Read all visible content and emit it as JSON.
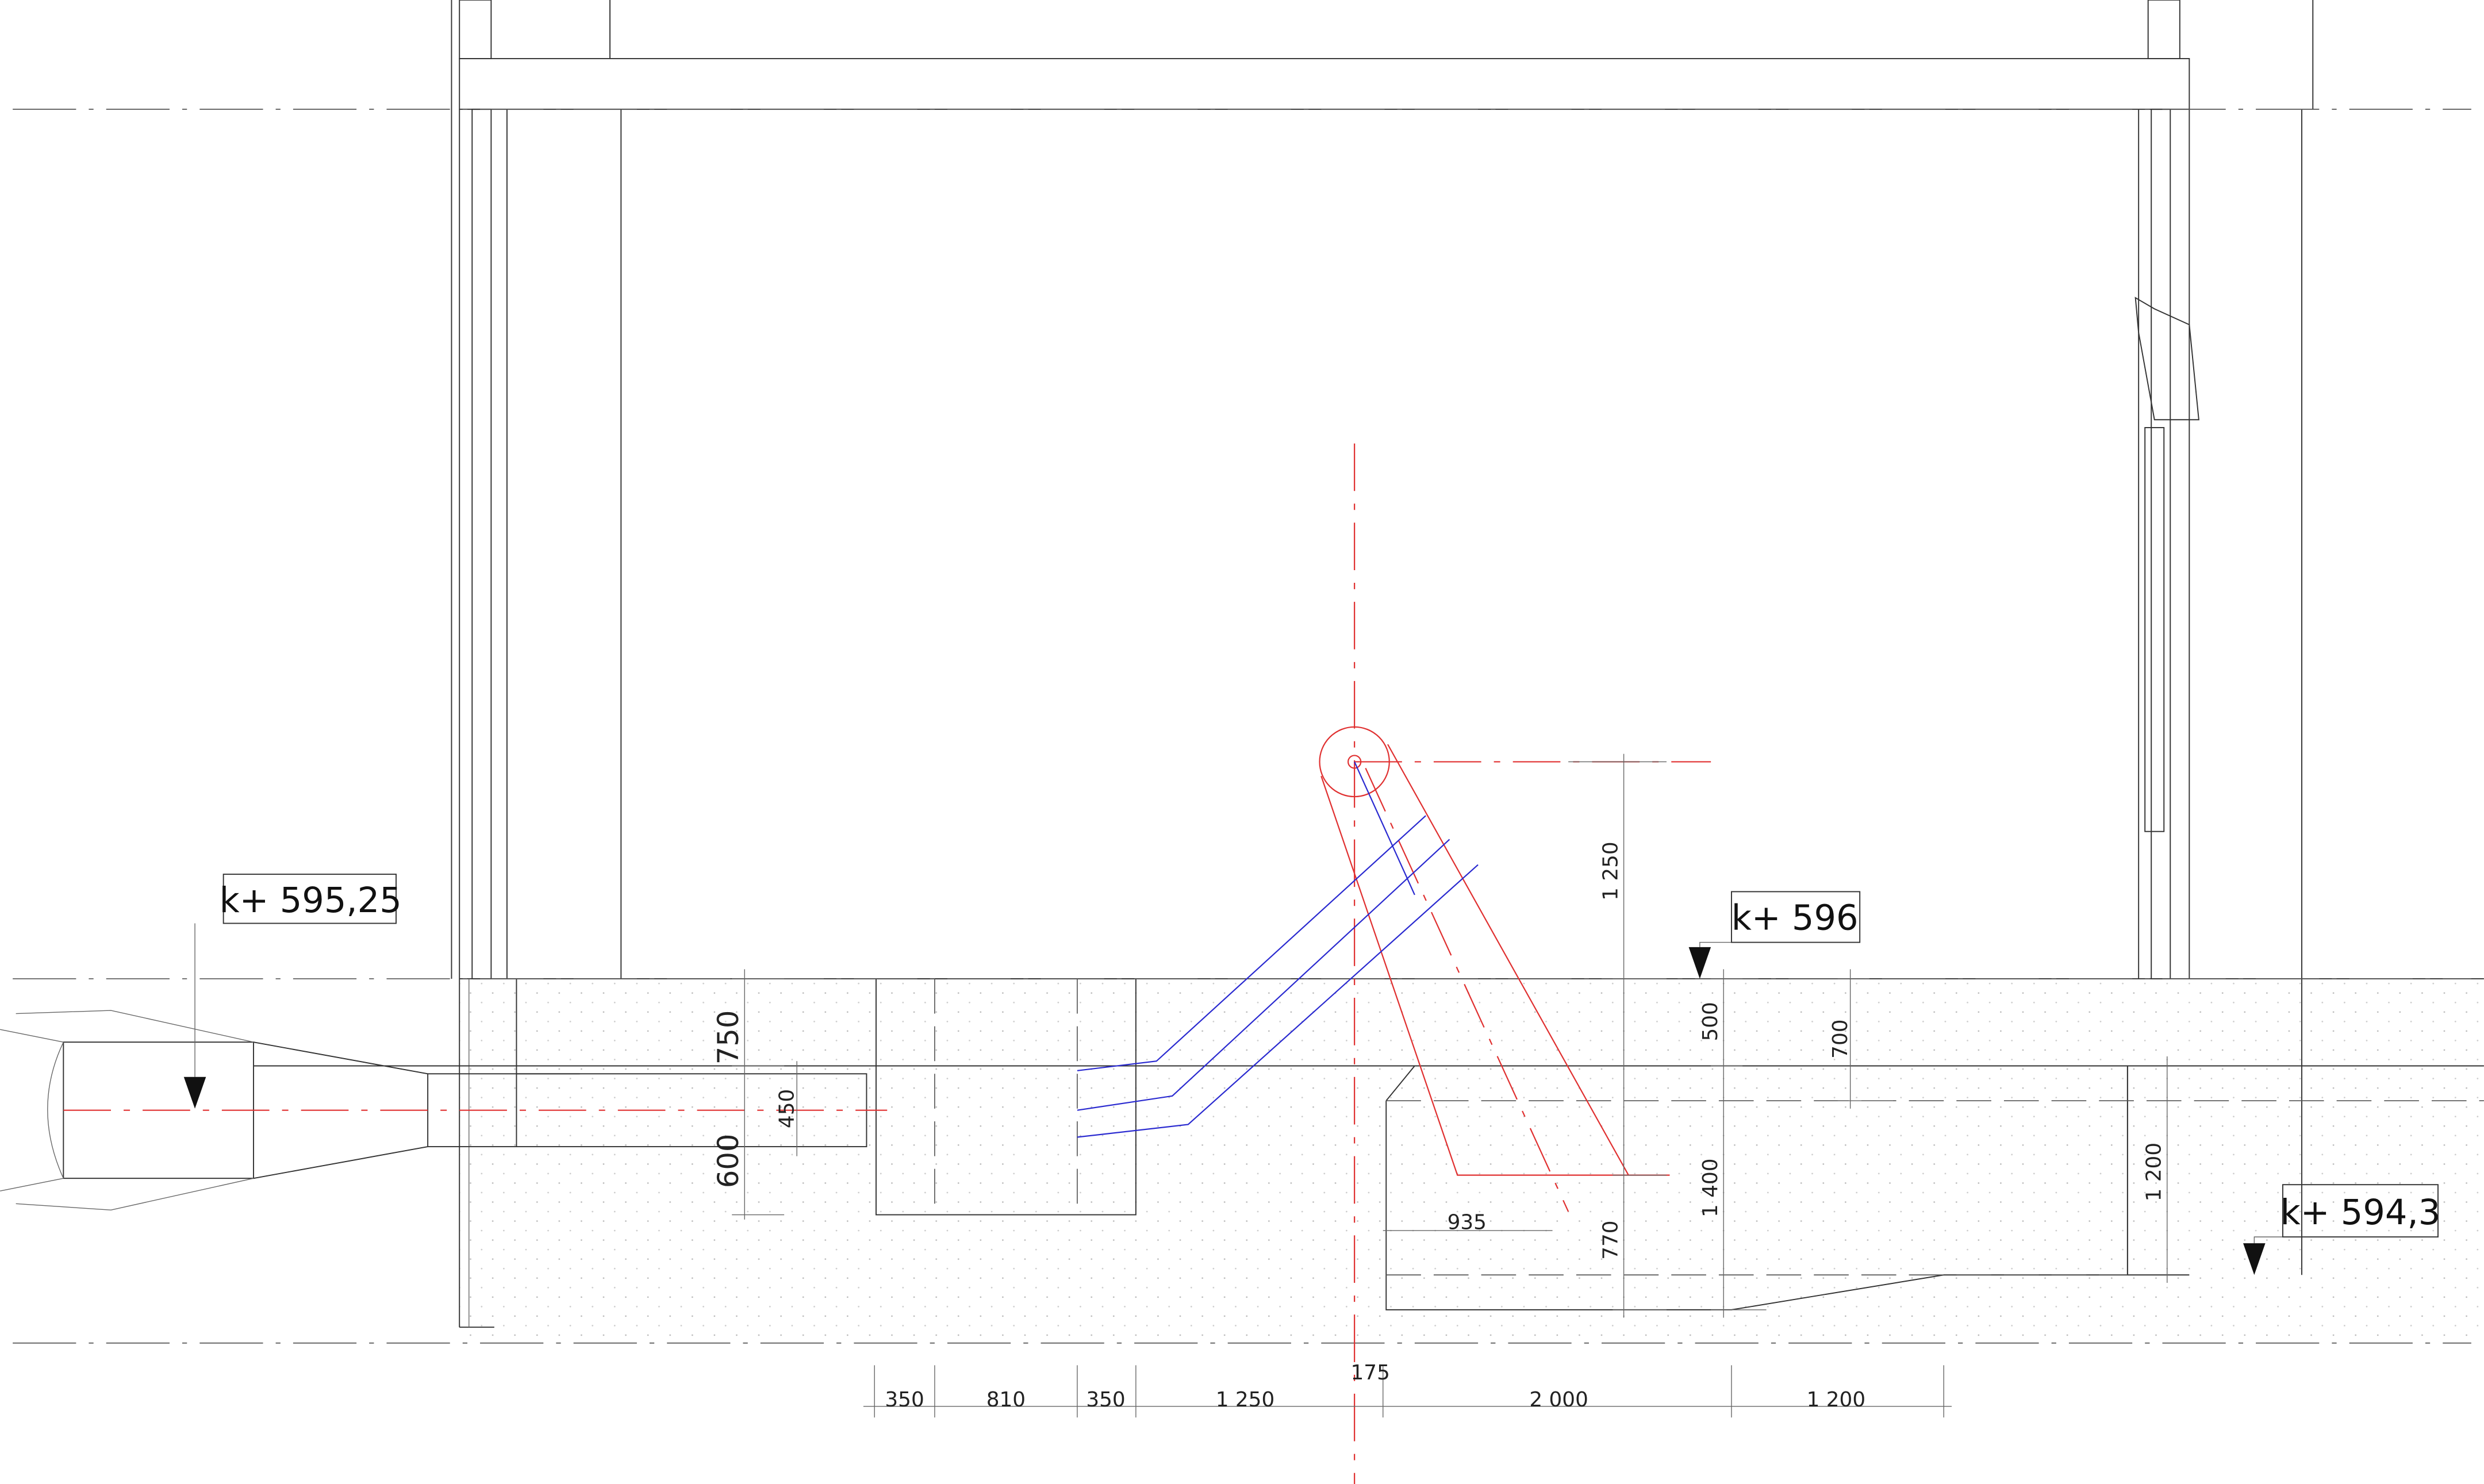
{
  "levels": [
    "k+ 595,25",
    "k+ 596",
    "k+ 594,3"
  ],
  "dimensions": {
    "bottom": [
      "350",
      "810",
      "350",
      "1 250",
      "175",
      "2 000",
      "1 200"
    ],
    "vertical": [
      "750",
      "600",
      "450",
      "1 250",
      "500",
      "700",
      "1 400",
      "1 200",
      "770"
    ],
    "horizontal": [
      "935"
    ]
  }
}
